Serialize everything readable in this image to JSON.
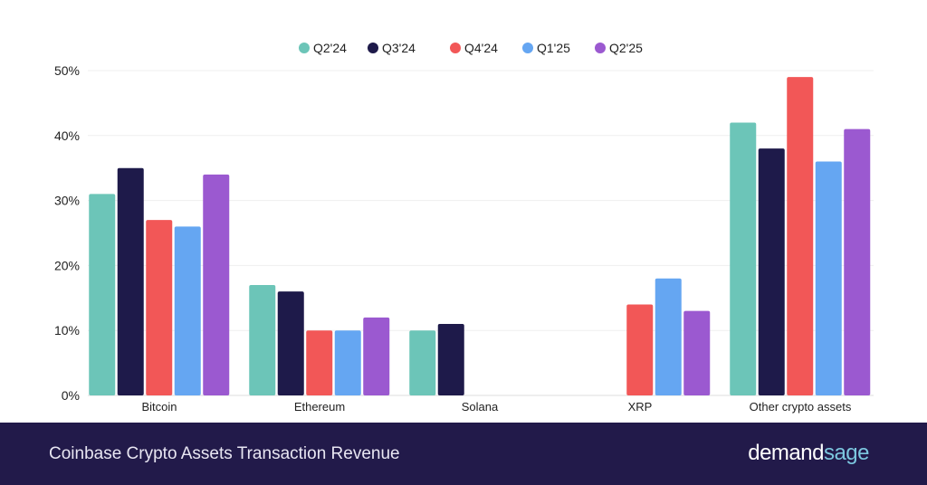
{
  "chart_data": {
    "type": "bar",
    "title": "Coinbase Crypto Assets Transaction Revenue",
    "xlabel": "",
    "ylabel": "",
    "ylim": [
      0,
      50
    ],
    "yticks": [
      "0%",
      "10%",
      "20%",
      "30%",
      "40%",
      "50%"
    ],
    "ytick_values": [
      0,
      10,
      20,
      30,
      40,
      50
    ],
    "categories": [
      "Bitcoin",
      "Ethereum",
      "Solana",
      "XRP",
      "Other crypto assets"
    ],
    "legend_position": "top-center",
    "grid": true,
    "series": [
      {
        "name": "Q2'24",
        "color": "#6cc5b8",
        "values": [
          31,
          17,
          10,
          0,
          42
        ]
      },
      {
        "name": "Q3'24",
        "color": "#1e1a4a",
        "values": [
          35,
          16,
          11,
          0,
          38
        ]
      },
      {
        "name": "Q4'24",
        "color": "#f25757",
        "values": [
          27,
          10,
          0,
          14,
          49
        ]
      },
      {
        "name": "Q1'25",
        "color": "#65a6f2",
        "values": [
          26,
          10,
          0,
          18,
          36
        ]
      },
      {
        "name": "Q2'25",
        "color": "#9b59d0",
        "values": [
          34,
          12,
          0,
          13,
          41
        ]
      }
    ]
  },
  "footer": {
    "title": "Coinbase Crypto Assets Transaction Revenue",
    "logo_part1": "demand",
    "logo_part2": "sage"
  }
}
